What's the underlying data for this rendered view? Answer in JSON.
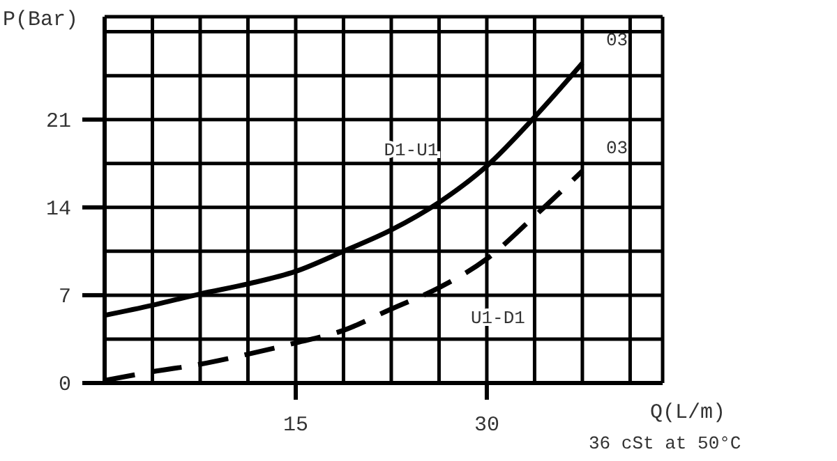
{
  "chart_data": {
    "type": "line",
    "xlabel": "Q(L/m)",
    "ylabel": "P(Bar)",
    "x": [
      0,
      3.75,
      7.5,
      11.25,
      15,
      18.75,
      22.5,
      26.25,
      30,
      33.75,
      37.5
    ],
    "series": [
      {
        "name": "D1-U1",
        "color": "#000000",
        "line_style": "solid",
        "values": [
          5.4,
          6.2,
          7.1,
          7.9,
          8.9,
          10.5,
          12.2,
          14.4,
          17.3,
          21.2,
          25.5
        ]
      },
      {
        "name": "U1-D1",
        "color": "#000000",
        "line_style": "dashed",
        "values": [
          0.2,
          0.9,
          1.5,
          2.3,
          3.2,
          4.2,
          5.9,
          7.6,
          9.9,
          13.3,
          16.9
        ]
      }
    ],
    "xlim": [
      0,
      43.8
    ],
    "xticks": [
      {
        "value": 0,
        "label": null
      },
      {
        "value": 3.75,
        "label": null
      },
      {
        "value": 7.5,
        "label": null
      },
      {
        "value": 11.25,
        "label": null
      },
      15,
      {
        "value": 18.75,
        "label": null
      },
      {
        "value": 22.5,
        "label": null
      },
      {
        "value": 26.25,
        "label": null
      },
      30,
      {
        "value": 33.75,
        "label": null
      },
      {
        "value": 37.5,
        "label": null
      },
      {
        "value": 41.25,
        "label": null
      }
    ],
    "ylim": [
      0,
      29.2
    ],
    "yticks": [
      0,
      {
        "value": 3.5,
        "label": null
      },
      7,
      {
        "value": 10.5,
        "label": null
      },
      14,
      {
        "value": 17.5,
        "label": null
      },
      21,
      {
        "value": 24.5,
        "label": null
      },
      {
        "value": 28,
        "label": null
      }
    ],
    "grid": true,
    "marker": "none",
    "annotations": [
      {
        "text": "03",
        "x": 37.5,
        "y": 25.5
      },
      {
        "text": "03",
        "x": 37.5,
        "y": 16.9
      },
      "36 cSt at 50°C"
    ]
  }
}
